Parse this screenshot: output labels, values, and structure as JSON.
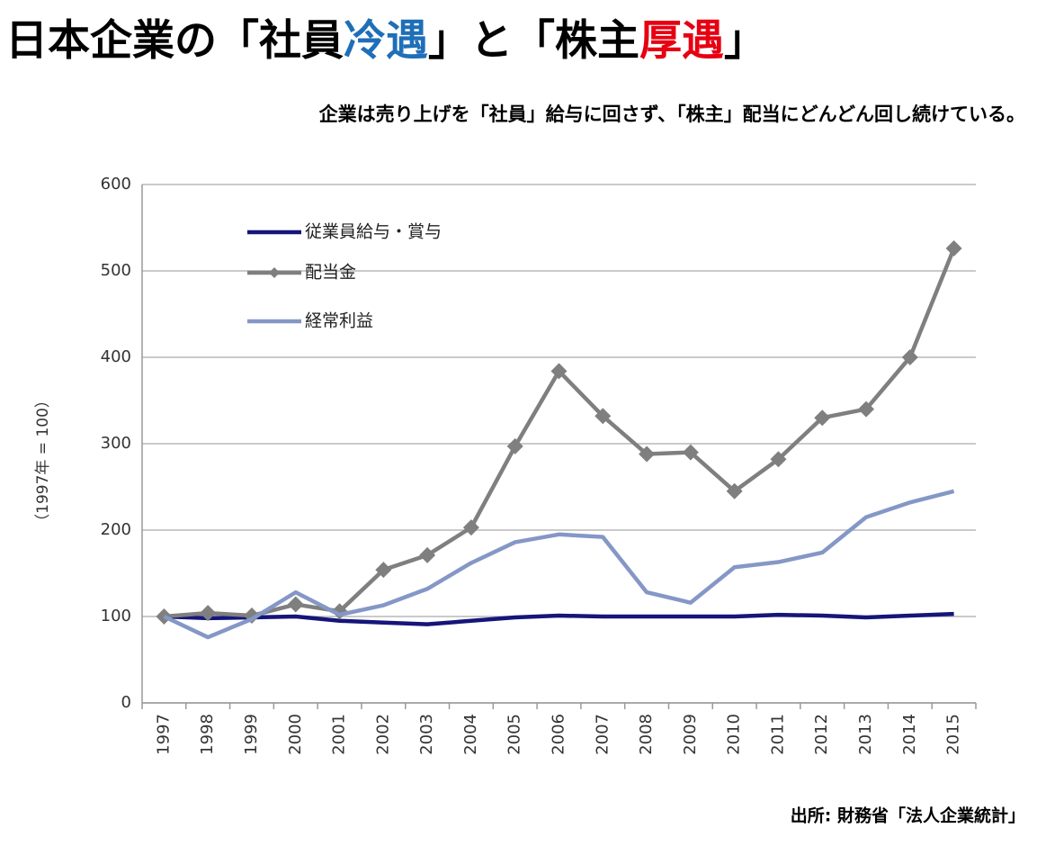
{
  "chart_data": {
    "type": "line",
    "title_parts": [
      {
        "text": "日本企業の「社員",
        "color": "#000000"
      },
      {
        "text": "冷遇",
        "color": "#1f6fb8"
      },
      {
        "text": "」と「株主",
        "color": "#000000"
      },
      {
        "text": "厚遇",
        "color": "#e60012"
      },
      {
        "text": "」",
        "color": "#000000"
      }
    ],
    "subtitle": "企業は売り上げを「社員」給与に回さず、「株主」配当にどんどん回し続けている。",
    "y_label": "（1997年 = 100）",
    "source": "出所: 財務省「法人企業統計」",
    "categories": [
      "1997",
      "1998",
      "1999",
      "2000",
      "2001",
      "2002",
      "2003",
      "2004",
      "2005",
      "2006",
      "2007",
      "2008",
      "2009",
      "2010",
      "2011",
      "2012",
      "2013",
      "2014",
      "2015"
    ],
    "series": [
      {
        "name": "従業員給与・賞与",
        "color": "#15157a",
        "marker": "none",
        "values": [
          100,
          98,
          99,
          100,
          95,
          93,
          91,
          95,
          99,
          101,
          100,
          100,
          100,
          100,
          102,
          101,
          99,
          101,
          103
        ]
      },
      {
        "name": "配当金",
        "color": "#7f7f7f",
        "marker": "diamond",
        "values": [
          100,
          104,
          101,
          114,
          106,
          154,
          171,
          203,
          297,
          384,
          332,
          288,
          290,
          245,
          282,
          330,
          340,
          400,
          526
        ]
      },
      {
        "name": "経常利益",
        "color": "#8497c6",
        "marker": "none",
        "values": [
          100,
          76,
          97,
          128,
          102,
          113,
          132,
          162,
          186,
          195,
          192,
          128,
          116,
          157,
          163,
          174,
          215,
          232,
          245
        ]
      }
    ],
    "ylim": [
      0,
      600
    ],
    "yticks": [
      0,
      100,
      200,
      300,
      400,
      500,
      600
    ],
    "grid": true,
    "legend": "top-left"
  }
}
